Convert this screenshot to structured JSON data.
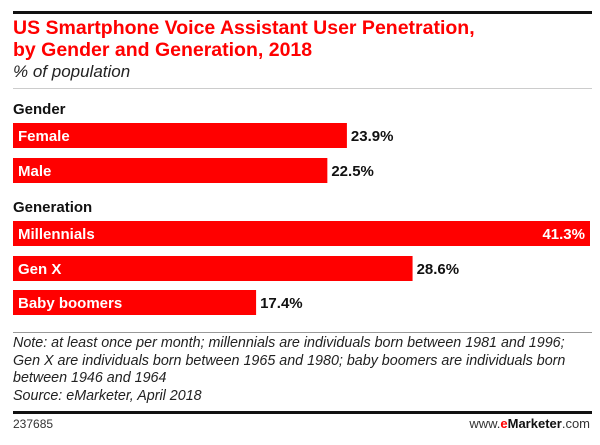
{
  "chart_data": {
    "type": "bar",
    "orientation": "horizontal",
    "title": "US Smartphone Voice Assistant User Penetration, by Gender and Generation, 2018",
    "title_lines": [
      "US Smartphone Voice Assistant User Penetration,",
      "by Gender and Generation, 2018"
    ],
    "subtitle": "% of population",
    "xlabel": "",
    "ylabel": "",
    "unit": "%",
    "xlim": [
      0,
      41.3
    ],
    "grid": false,
    "groups": [
      {
        "name": "Gender",
        "categories": [
          "Female",
          "Male"
        ],
        "values": [
          23.9,
          22.5
        ],
        "value_labels": [
          "23.9%",
          "22.5%"
        ]
      },
      {
        "name": "Generation",
        "categories": [
          "Millennials",
          "Gen X",
          "Baby boomers"
        ],
        "values": [
          41.3,
          28.6,
          17.4
        ],
        "value_labels": [
          "41.3%",
          "28.6%",
          "17.4%"
        ]
      }
    ],
    "bar_color": "#ff0000",
    "note": "Note: at least once per month; millennials are individuals born between 1981 and 1996; Gen X are individuals born between 1965 and 1980; baby boomers are individuals born between 1946 and 1964",
    "source": "Source: eMarketer, April 2018"
  },
  "footer": {
    "chart_id": "237685",
    "brand_prefix": "www.",
    "brand_e": "e",
    "brand_name": "Marketer",
    "brand_suffix": ".com"
  },
  "colors": {
    "accent": "#ff0000",
    "text": "#111111"
  }
}
